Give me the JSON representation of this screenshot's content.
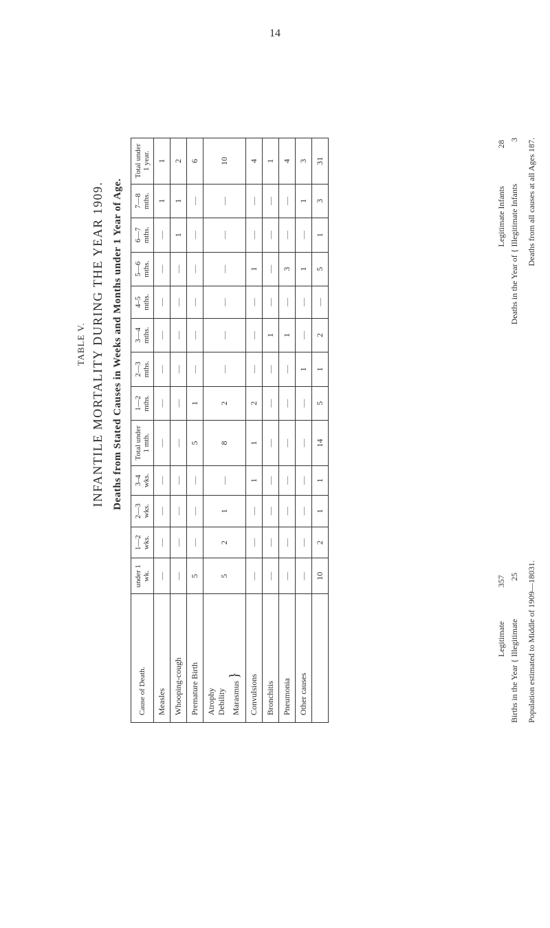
{
  "pageNumber": "14",
  "titles": {
    "tabline": "TABLE V.",
    "main": "INFANTILE MORTALITY DURING THE YEAR 1909.",
    "sub": "Deaths from Stated Causes in Weeks and Months under 1 Year of Age."
  },
  "table": {
    "headers": {
      "cause": "Cause of Death.",
      "u1wk": "under 1 wk.",
      "w12": "1—2 wks.",
      "w23": "2—3 wks.",
      "w34": "3–4 wks.",
      "totU1m": "Total under 1 mth.",
      "m12": "1—2 mths.",
      "m23": "2—3 mths.",
      "m34": "3—4 mths.",
      "m45": "4–5 mths.",
      "m56": "5—6 mths.",
      "m67": "6—7 mths.",
      "m78": "7—8 mths.",
      "totU1y": "Total under 1 year."
    },
    "rows": [
      {
        "cause": "Measles",
        "cells": [
          "",
          "",
          "",
          "",
          "",
          "",
          "",
          "",
          "",
          "",
          "",
          "1",
          "1"
        ]
      },
      {
        "cause": "Whooping-cough",
        "cells": [
          "",
          "",
          "",
          "",
          "",
          "",
          "",
          "",
          "",
          "",
          "1",
          "1",
          "2"
        ]
      },
      {
        "cause": "Premature Birth",
        "cells": [
          "5",
          "",
          "",
          "",
          "5",
          "1",
          "",
          "",
          "",
          "",
          "",
          "",
          "6"
        ]
      },
      {
        "cause": "Atrophy\nDebility\nMarasmus",
        "brace": true,
        "cells": [
          "5",
          "2",
          "1",
          "",
          "8",
          "2",
          "",
          "",
          "",
          "",
          "",
          "",
          "10"
        ]
      },
      {
        "cause": "Convulsions",
        "cells": [
          "",
          "",
          "",
          "1",
          "1",
          "2",
          "",
          "",
          "",
          "1",
          "",
          "",
          "4"
        ]
      },
      {
        "cause": "Bronchitis",
        "cells": [
          "",
          "",
          "",
          "",
          "",
          "",
          "",
          "1",
          "",
          "",
          "",
          "",
          "1"
        ]
      },
      {
        "cause": "Pneumonia",
        "cells": [
          "",
          "",
          "",
          "",
          "",
          "",
          "",
          "1",
          "",
          "3",
          "",
          "",
          "4"
        ]
      },
      {
        "cause": "Other causes",
        "cells": [
          "",
          "",
          "",
          "",
          "",
          "",
          "1",
          "",
          "",
          "1",
          "",
          "1",
          "3"
        ]
      }
    ],
    "totals": {
      "label": "",
      "cells": [
        "10",
        "2",
        "1",
        "1",
        "14",
        "5",
        "1",
        "2",
        "",
        "5",
        "1",
        "3",
        "31"
      ]
    }
  },
  "footnotes": {
    "birthsLabel": "Births in the Year",
    "birthsLegit": "Legitimate",
    "birthsLegitVal": "357",
    "birthsIllegit": "Illegitimate",
    "birthsIllegitVal": "25",
    "deathsLabel": "Deaths in the Year of",
    "deathsLegit": "Legitimate Infants",
    "deathsLegitVal": "28",
    "deathsIllegit": "Illegitimate Infants",
    "deathsIllegitVal": "3",
    "popLabel": "Population estimated to Middle of 1909—18031.",
    "allCausesLabel": "Deaths from all causes at all Ages 187."
  }
}
